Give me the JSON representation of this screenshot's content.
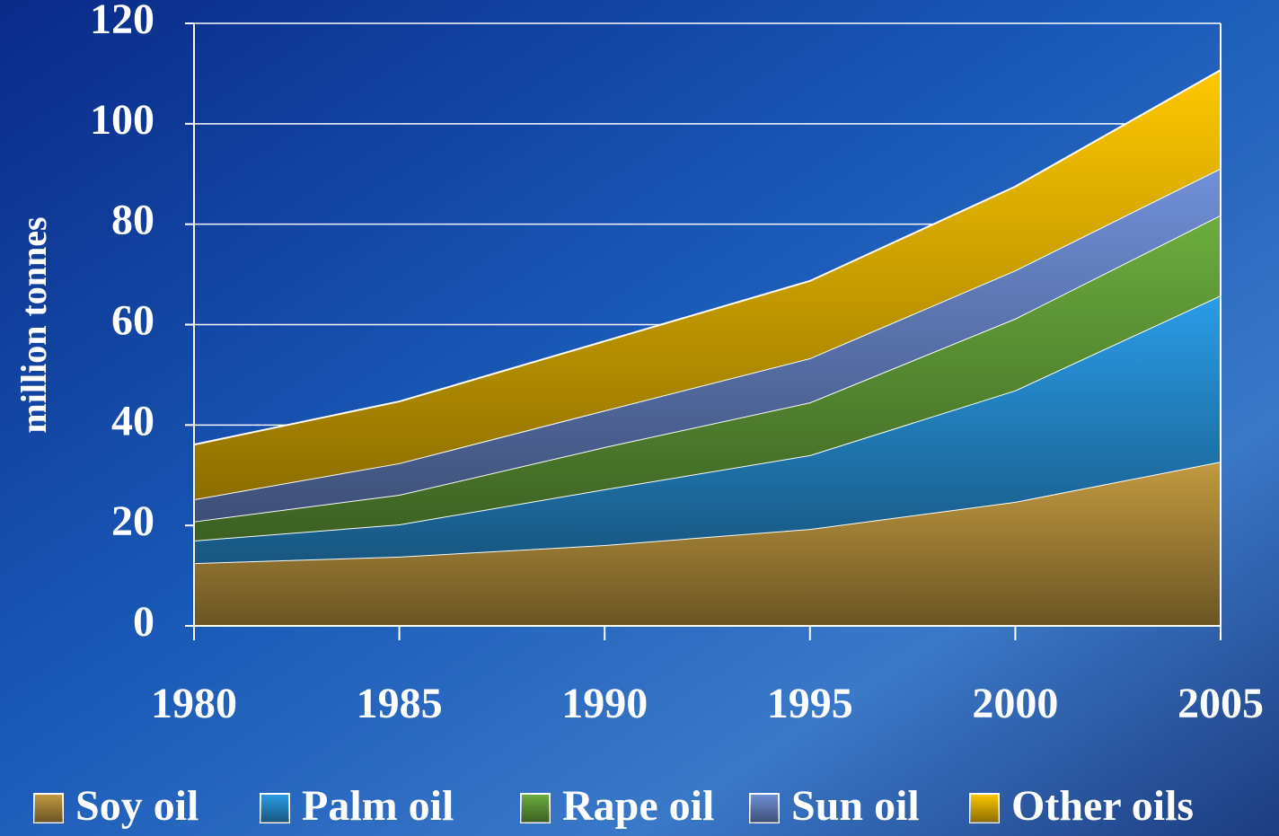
{
  "chart_data": {
    "type": "stacked-area",
    "y_label": "million tonnes",
    "x": [
      1980,
      1985,
      1990,
      1995,
      2000,
      2005
    ],
    "xlim": [
      1980,
      2005
    ],
    "xticks": [
      1980,
      1985,
      1990,
      1995,
      2000,
      2005
    ],
    "ylim": [
      0,
      120
    ],
    "yticks": [
      0,
      20,
      40,
      60,
      80,
      100,
      120
    ],
    "grid": true,
    "legend": "bottom",
    "series": [
      {
        "name": "Soy oil",
        "color": "#c29a40",
        "values": [
          12.5,
          13.8,
          16.1,
          19.3,
          24.7,
          32.7
        ]
      },
      {
        "name": "Palm oil",
        "color": "#2a9ce8",
        "values": [
          4.5,
          6.4,
          11.1,
          14.7,
          22.2,
          33.1
        ]
      },
      {
        "name": "Rape oil",
        "color": "#6cae3e",
        "values": [
          3.8,
          5.9,
          8.4,
          10.5,
          14.3,
          16.0
        ]
      },
      {
        "name": "Sun oil",
        "color": "#7090d8",
        "values": [
          4.4,
          6.3,
          7.3,
          8.8,
          9.6,
          9.3
        ]
      },
      {
        "name": "Other oils",
        "color": "#ffc800",
        "values": [
          10.9,
          12.3,
          13.8,
          15.4,
          16.7,
          19.6
        ]
      }
    ]
  }
}
